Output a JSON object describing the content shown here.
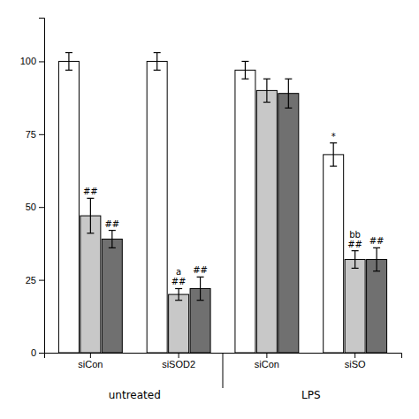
{
  "chart_data": {
    "type": "bar",
    "categories": [
      "siCon",
      "siSOD2",
      "siCon",
      "siSO"
    ],
    "sections": [
      "untreated",
      "LPS"
    ],
    "series": [
      {
        "color": "white",
        "values": [
          100,
          100,
          97,
          68
        ],
        "errors": [
          3,
          3,
          3,
          4
        ],
        "annotations": [
          null,
          null,
          null,
          "*"
        ]
      },
      {
        "color": "#c8c8c8",
        "values": [
          47,
          20,
          90,
          32
        ],
        "errors": [
          6,
          2,
          4,
          3
        ],
        "annotations": [
          "##",
          "a\n##",
          null,
          "bb\n##"
        ]
      },
      {
        "color": "#707070",
        "values": [
          39,
          22,
          89,
          32
        ],
        "errors": [
          3,
          4,
          5,
          4
        ],
        "annotations": [
          "##",
          "##",
          null,
          "##"
        ]
      }
    ],
    "ylim": [
      0,
      115
    ],
    "yticks": [
      0,
      25,
      50,
      75,
      100
    ],
    "grid": false
  }
}
